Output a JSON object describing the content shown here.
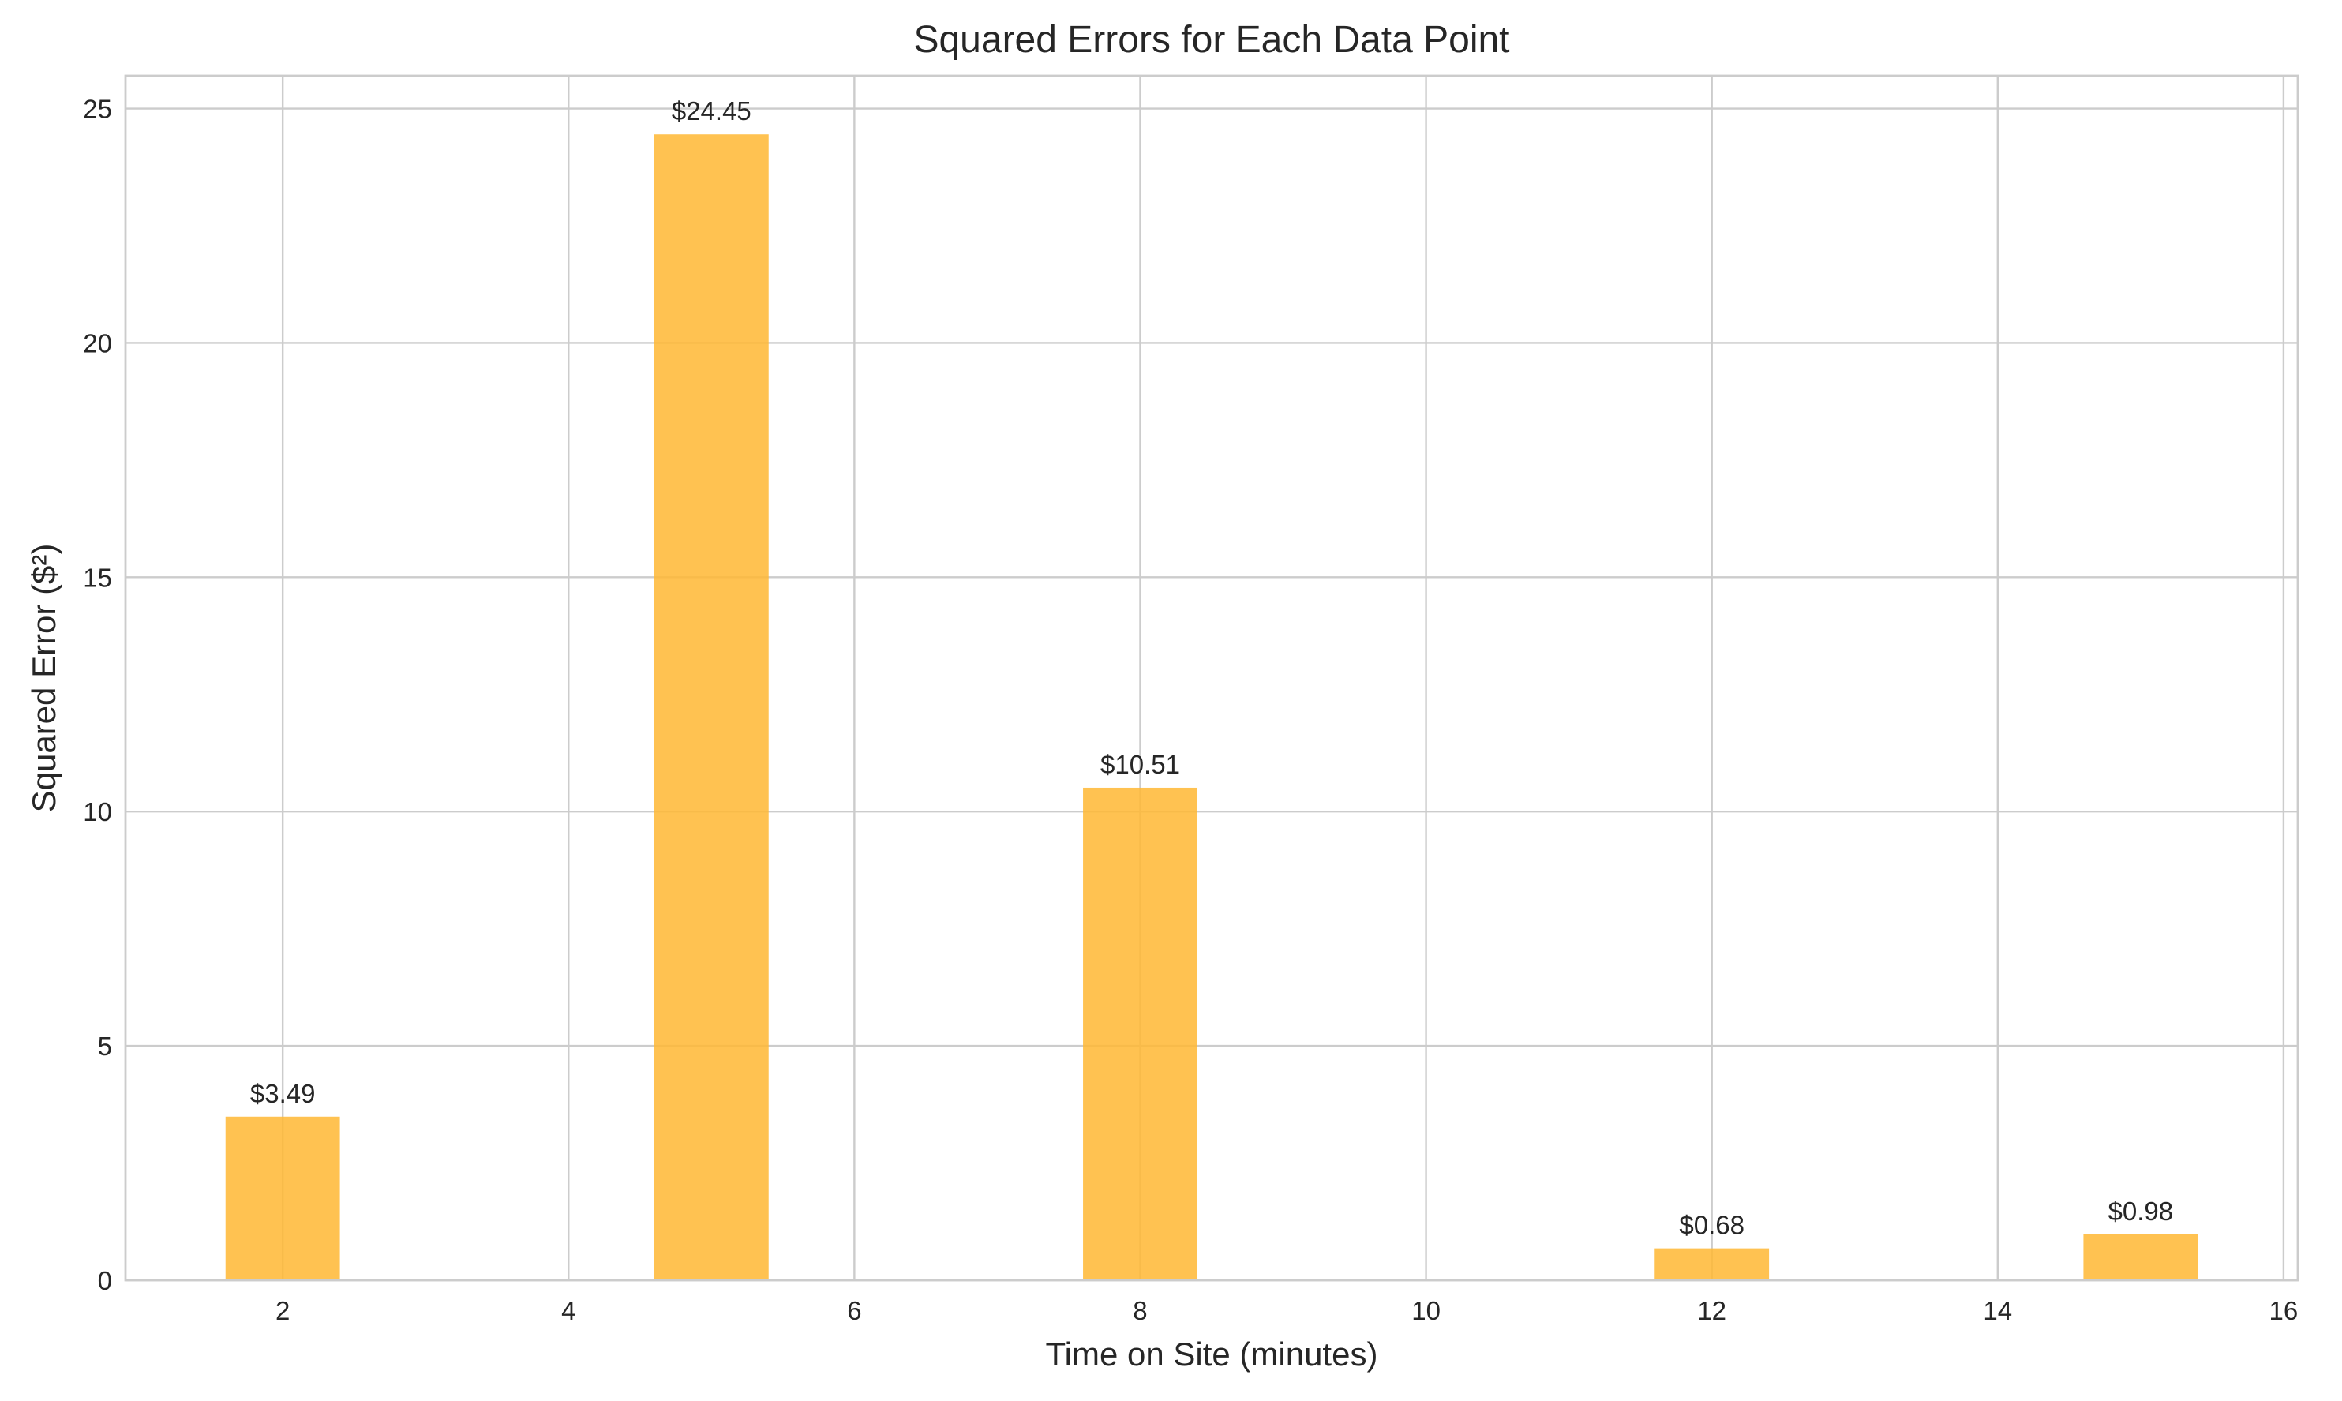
{
  "chart_data": {
    "type": "bar",
    "title": "Squared Errors for Each Data Point",
    "xlabel": "Time on Site (minutes)",
    "ylabel": "Squared Error ($²)",
    "x": [
      2,
      5,
      8,
      12,
      15
    ],
    "values": [
      3.49,
      24.45,
      10.51,
      0.68,
      0.98
    ],
    "value_labels": [
      "$3.49",
      "$24.45",
      "$10.51",
      "$0.68",
      "$0.98"
    ],
    "bar_width": 0.8,
    "xlim": [
      0.9,
      16.1
    ],
    "ylim": [
      0,
      25.7
    ],
    "x_ticks": [
      2,
      4,
      6,
      8,
      10,
      12,
      14,
      16
    ],
    "y_ticks": [
      0,
      5,
      10,
      15,
      20,
      25
    ],
    "grid": true,
    "colors": {
      "bar": "#ffb732",
      "grid": "#cccccc",
      "text": "#262626"
    }
  }
}
